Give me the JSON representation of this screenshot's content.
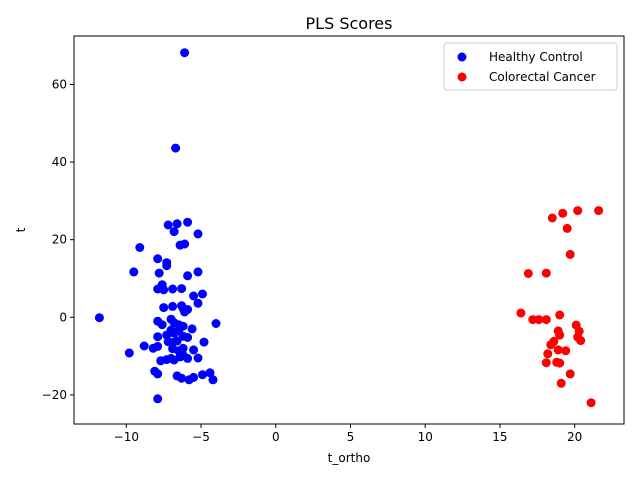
{
  "chart_data": {
    "type": "scatter",
    "title": "PLS Scores",
    "xlabel": "t_ortho",
    "ylabel": "t",
    "xlim": [
      -13.5,
      23.3
    ],
    "ylim": [
      -27.5,
      72.5
    ],
    "xticks": [
      -10,
      -5,
      0,
      5,
      10,
      15,
      20
    ],
    "xtick_labels": [
      "−10",
      "−5",
      "0",
      "5",
      "10",
      "15",
      "20"
    ],
    "yticks": [
      -20,
      0,
      20,
      40,
      60
    ],
    "ytick_labels": [
      "−20",
      "0",
      "20",
      "40",
      "60"
    ],
    "grid": false,
    "legend_position": "top-right",
    "series": [
      {
        "name": "Healthy Control",
        "color": "#0000ff",
        "points": [
          [
            -6.1,
            68.2
          ],
          [
            -6.7,
            43.6
          ],
          [
            -7.2,
            23.8
          ],
          [
            -6.6,
            24.1
          ],
          [
            -5.9,
            24.5
          ],
          [
            -6.8,
            22.1
          ],
          [
            -5.2,
            21.5
          ],
          [
            -6.4,
            18.6
          ],
          [
            -6.1,
            18.9
          ],
          [
            -9.1,
            18.0
          ],
          [
            -7.9,
            15.1
          ],
          [
            -7.3,
            14.1
          ],
          [
            -7.3,
            13.3
          ],
          [
            -9.5,
            11.7
          ],
          [
            -7.8,
            11.4
          ],
          [
            -5.9,
            10.7
          ],
          [
            -5.2,
            11.7
          ],
          [
            -7.6,
            8.4
          ],
          [
            -7.9,
            7.3
          ],
          [
            -7.5,
            7.1
          ],
          [
            -6.9,
            7.3
          ],
          [
            -6.3,
            7.4
          ],
          [
            -5.5,
            5.5
          ],
          [
            -4.9,
            6.0
          ],
          [
            -7.5,
            2.5
          ],
          [
            -6.9,
            2.8
          ],
          [
            -6.2,
            2.3
          ],
          [
            -6.3,
            3.0
          ],
          [
            -5.9,
            2.0
          ],
          [
            -6.1,
            1.4
          ],
          [
            -5.2,
            3.6
          ],
          [
            -11.8,
            -0.1
          ],
          [
            -7.9,
            -1.0
          ],
          [
            -7.6,
            -1.9
          ],
          [
            -7.0,
            -0.5
          ],
          [
            -6.8,
            -1.4
          ],
          [
            -6.5,
            -1.9
          ],
          [
            -6.2,
            -2.3
          ],
          [
            -5.6,
            -3.0
          ],
          [
            -4.0,
            -1.6
          ],
          [
            -7.9,
            -5.0
          ],
          [
            -7.3,
            -4.6
          ],
          [
            -7.0,
            -3.3
          ],
          [
            -6.8,
            -4.1
          ],
          [
            -6.5,
            -3.5
          ],
          [
            -6.2,
            -4.9
          ],
          [
            -5.9,
            -5.2
          ],
          [
            -7.2,
            -6.3
          ],
          [
            -6.9,
            -6.5
          ],
          [
            -6.6,
            -6.1
          ],
          [
            -8.8,
            -7.4
          ],
          [
            -8.2,
            -8.0
          ],
          [
            -7.9,
            -7.5
          ],
          [
            -6.9,
            -8.1
          ],
          [
            -6.5,
            -8.6
          ],
          [
            -6.2,
            -8.0
          ],
          [
            -4.8,
            -6.4
          ],
          [
            -9.8,
            -9.2
          ],
          [
            -7.7,
            -11.2
          ],
          [
            -7.3,
            -10.9
          ],
          [
            -7.0,
            -10.6
          ],
          [
            -6.8,
            -11.0
          ],
          [
            -6.4,
            -10.2
          ],
          [
            -6.2,
            -9.8
          ],
          [
            -5.9,
            -10.6
          ],
          [
            -5.5,
            -8.4
          ],
          [
            -5.2,
            -10.5
          ],
          [
            -8.1,
            -13.9
          ],
          [
            -7.9,
            -14.6
          ],
          [
            -6.6,
            -15.1
          ],
          [
            -6.3,
            -15.7
          ],
          [
            -5.8,
            -16.1
          ],
          [
            -5.5,
            -15.5
          ],
          [
            -4.9,
            -14.8
          ],
          [
            -4.4,
            -14.3
          ],
          [
            -4.2,
            -16.1
          ],
          [
            -7.9,
            -21.0
          ]
        ]
      },
      {
        "name": "Colorectal Cancer",
        "color": "#ff0000",
        "points": [
          [
            21.6,
            27.5
          ],
          [
            20.2,
            27.5
          ],
          [
            19.2,
            26.8
          ],
          [
            18.5,
            25.6
          ],
          [
            19.5,
            22.9
          ],
          [
            19.7,
            16.2
          ],
          [
            16.9,
            11.3
          ],
          [
            18.1,
            11.4
          ],
          [
            16.4,
            1.1
          ],
          [
            19.0,
            0.6
          ],
          [
            17.2,
            -0.6
          ],
          [
            17.6,
            -0.6
          ],
          [
            18.1,
            -0.6
          ],
          [
            20.1,
            -2.0
          ],
          [
            20.3,
            -3.6
          ],
          [
            20.2,
            -5.1
          ],
          [
            20.4,
            -6.0
          ],
          [
            18.9,
            -3.5
          ],
          [
            19.0,
            -4.6
          ],
          [
            18.6,
            -6.2
          ],
          [
            18.4,
            -7.1
          ],
          [
            18.9,
            -8.4
          ],
          [
            19.4,
            -8.6
          ],
          [
            18.2,
            -9.4
          ],
          [
            18.1,
            -11.7
          ],
          [
            18.8,
            -11.6
          ],
          [
            19.0,
            -11.8
          ],
          [
            19.7,
            -14.6
          ],
          [
            19.1,
            -17.0
          ],
          [
            21.1,
            -22.0
          ]
        ]
      }
    ]
  }
}
